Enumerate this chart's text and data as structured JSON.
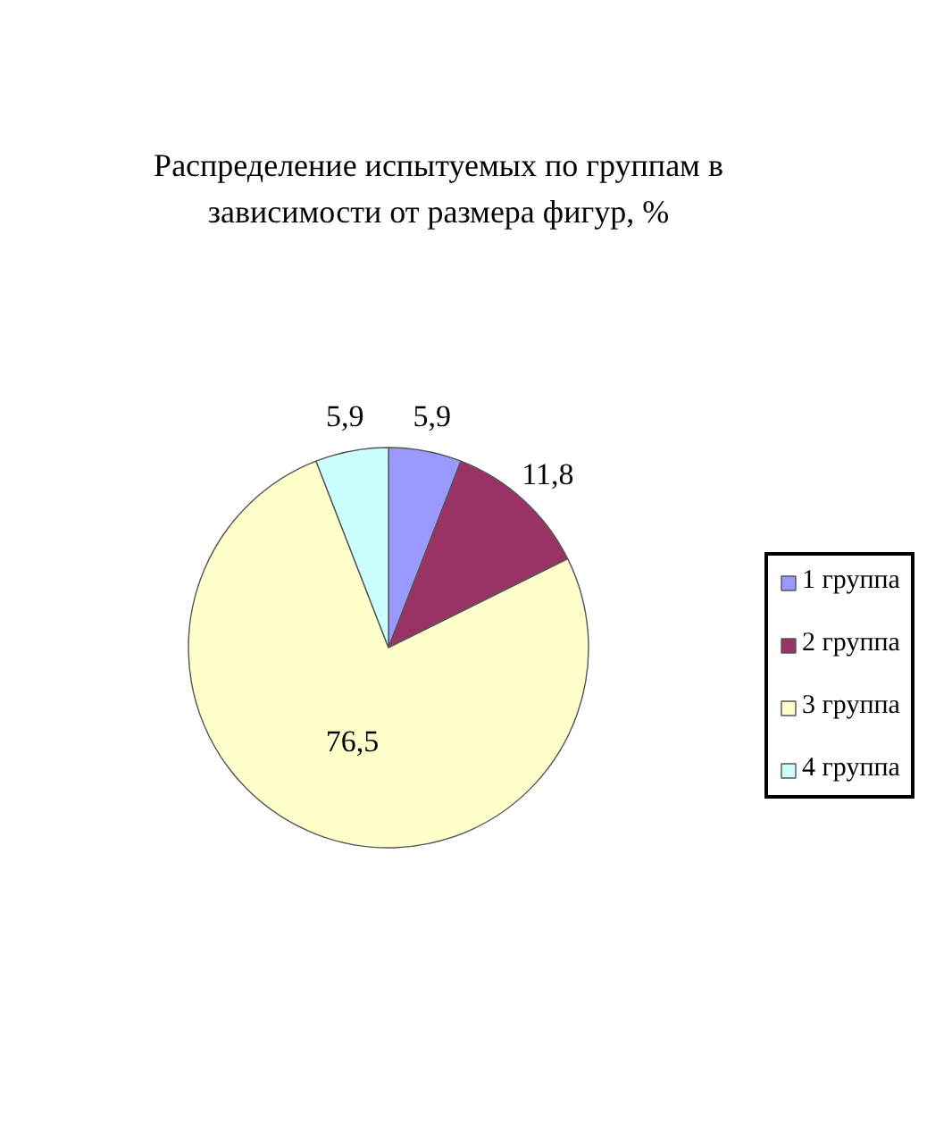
{
  "chart_data": {
    "type": "pie",
    "title": "Распределение испытуемых по группам в зависимости от размера фигур, %",
    "categories": [
      "1 группа",
      "2 группа",
      "3 группа",
      "4 группа"
    ],
    "values": [
      5.9,
      11.8,
      76.5,
      5.9
    ],
    "colors": [
      "#9999ff",
      "#993366",
      "#ffffcc",
      "#ccffff"
    ],
    "value_labels": [
      "5,9",
      "11,8",
      "76,5",
      "5,9"
    ],
    "legend": "right"
  }
}
